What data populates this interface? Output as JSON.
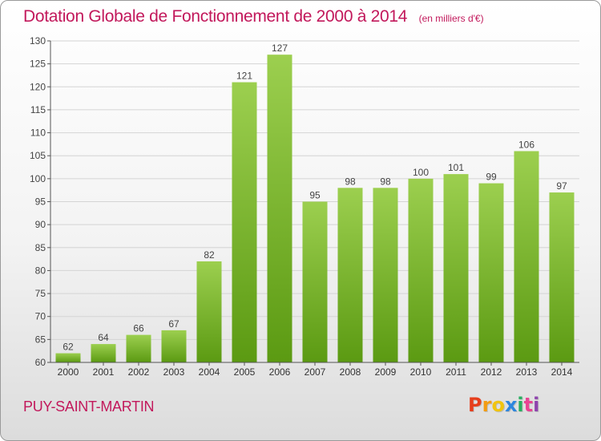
{
  "header": {
    "title": "Dotation Globale de Fonctionnement de 2000 à 2014",
    "subtitle": "(en milliers d'€)"
  },
  "footer": {
    "place": "PUY-SAINT-MARTIN",
    "logo": "Proxiti"
  },
  "colors": {
    "accent": "#c2185b",
    "bar_top": "#9ccf4f",
    "bar_bottom": "#5b9a12",
    "logo_letters": [
      "#e63e1c",
      "#f39c12",
      "#f1c40f",
      "#2e86de",
      "#27ae60",
      "#e84393",
      "#8e44ad"
    ]
  },
  "chart_data": {
    "type": "bar",
    "title": "Dotation Globale de Fonctionnement de 2000 à 2014",
    "subtitle": "(en milliers d'€)",
    "categories": [
      "2000",
      "2001",
      "2002",
      "2003",
      "2004",
      "2005",
      "2006",
      "2007",
      "2008",
      "2009",
      "2010",
      "2011",
      "2012",
      "2013",
      "2014"
    ],
    "values": [
      62,
      64,
      66,
      67,
      82,
      121,
      127,
      95,
      98,
      98,
      100,
      101,
      99,
      106,
      97
    ],
    "xlabel": "",
    "ylabel": "",
    "ylim": [
      60,
      130
    ],
    "yticks": [
      60,
      65,
      70,
      75,
      80,
      85,
      90,
      95,
      100,
      105,
      110,
      115,
      120,
      125,
      130
    ],
    "grid": true,
    "legend": "none"
  }
}
